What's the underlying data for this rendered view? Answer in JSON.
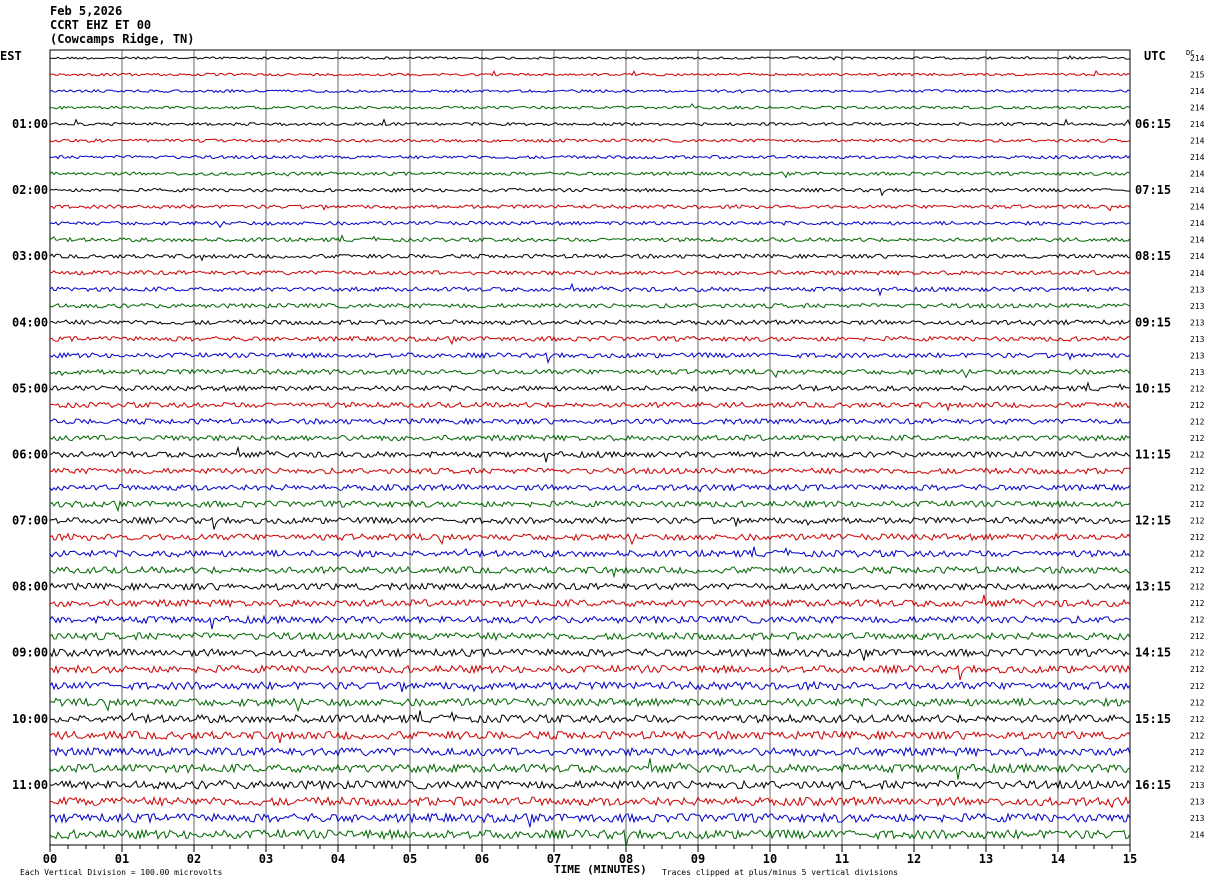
{
  "header": {
    "date": "Feb 5,2026",
    "station": "CCRT EHZ ET 00",
    "location": "(Cowcamps Ridge, TN)"
  },
  "left_tz": "EST",
  "right_tz": "UTC",
  "dc_label": "DC",
  "footer": {
    "scale_note": "Each Vertical Division =  100.00 microvolts",
    "clip_note": "Traces clipped at plus/minus 5 vertical divisions",
    "x_title": "TIME (MINUTES)"
  },
  "colors": {
    "trace_cycle": [
      "#000000",
      "#cc0000",
      "#0000cc",
      "#006600"
    ],
    "grid": "#000000"
  },
  "chart_data": {
    "type": "line",
    "title": "CCRT EHZ ET 00",
    "xlabel": "TIME (MINUTES)",
    "x_range": [
      0,
      15
    ],
    "x_ticks": [
      "00",
      "01",
      "02",
      "03",
      "04",
      "05",
      "06",
      "07",
      "08",
      "09",
      "10",
      "11",
      "12",
      "13",
      "14",
      "15"
    ],
    "trace_count": 48,
    "minutes_per_trace": 15,
    "left_hour_labels": [
      "01:00",
      "02:00",
      "03:00",
      "04:00",
      "05:00",
      "06:00",
      "07:00",
      "08:00",
      "09:00",
      "10:00",
      "11:00"
    ],
    "right_hour_labels": [
      "06:15",
      "07:15",
      "08:15",
      "09:15",
      "10:15",
      "11:15",
      "12:15",
      "13:15",
      "14:15",
      "15:15",
      "16:15"
    ],
    "dc_offsets": [
      "214",
      "215",
      "214",
      "214",
      "214",
      "214",
      "214",
      "214",
      "214",
      "214",
      "214",
      "214",
      "214",
      "214",
      "213",
      "213",
      "213",
      "213",
      "213",
      "213",
      "212",
      "212",
      "212",
      "212",
      "212",
      "212",
      "212",
      "212",
      "212",
      "212",
      "212",
      "212",
      "212",
      "212",
      "212",
      "212",
      "212",
      "212",
      "212",
      "212",
      "212",
      "212",
      "212",
      "212",
      "213",
      "213",
      "213",
      "214"
    ]
  }
}
